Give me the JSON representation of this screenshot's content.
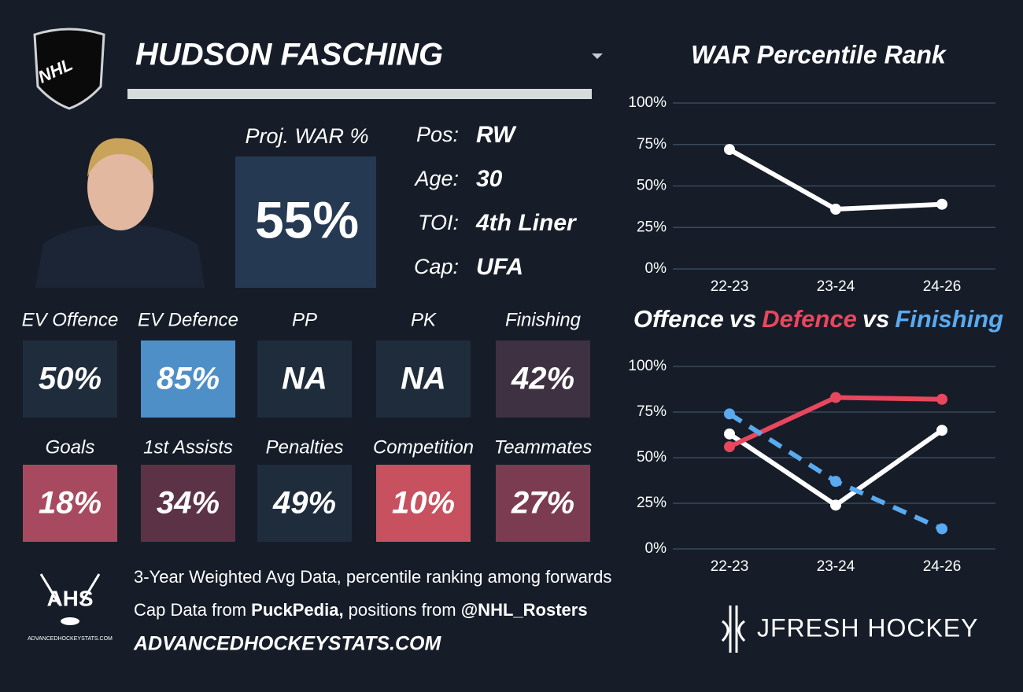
{
  "header": {
    "logo": "NHL",
    "player": "HUDSON FASCHING"
  },
  "proj": {
    "label": "Proj. WAR %",
    "value": "55%"
  },
  "bio": [
    {
      "label": "Pos:",
      "value": "RW"
    },
    {
      "label": "Age:",
      "value": "30"
    },
    {
      "label": "TOI:",
      "value": "4th Liner"
    },
    {
      "label": "Cap:",
      "value": "UFA"
    }
  ],
  "tiles": [
    {
      "label": "EV Offence",
      "value": "50%",
      "color": "#1f2c3c"
    },
    {
      "label": "EV Defence",
      "value": "85%",
      "color": "#4f8fc8"
    },
    {
      "label": "PP",
      "value": "NA",
      "color": "#1f2c3c"
    },
    {
      "label": "PK",
      "value": "NA",
      "color": "#1f2c3c"
    },
    {
      "label": "Finishing",
      "value": "42%",
      "color": "#3e3142"
    },
    {
      "label": "Goals",
      "value": "18%",
      "color": "#a84a5f"
    },
    {
      "label": "1st Assists",
      "value": "34%",
      "color": "#5c3346"
    },
    {
      "label": "Penalties",
      "value": "49%",
      "color": "#1f2c3c"
    },
    {
      "label": "Competition",
      "value": "10%",
      "color": "#c8515f"
    },
    {
      "label": "Teammates",
      "value": "27%",
      "color": "#7b3b51"
    }
  ],
  "footer": {
    "ahs_logo": "AHS",
    "ahs_site": "ADVANCEDHOCKEYSTATS.COM",
    "line1": "3-Year Weighted Avg Data, percentile ranking among forwards",
    "line2": [
      "Cap Data from ",
      "PuckPedia,",
      " positions from ",
      "@NHL_Rosters"
    ],
    "website": "ADVANCEDHOCKEYSTATS.COM",
    "brand": "JFRESH HOCKEY"
  },
  "chart_data": [
    {
      "type": "line",
      "title": "WAR Percentile Rank",
      "categories": [
        "22-23",
        "23-24",
        "24-26"
      ],
      "values": [
        72,
        36,
        39
      ],
      "color": "#ffffff",
      "ylim": [
        0,
        100
      ],
      "yticks": [
        {
          "value": 0,
          "label": "0%"
        },
        {
          "value": 25,
          "label": "25%"
        },
        {
          "value": 50,
          "label": "50%"
        },
        {
          "value": 75,
          "label": "75%"
        },
        {
          "value": 100,
          "label": "100%"
        }
      ],
      "grid": true
    },
    {
      "type": "line",
      "title_separator": "vs",
      "categories": [
        "22-23",
        "23-24",
        "24-26"
      ],
      "series": [
        {
          "name": "Offence",
          "color": "#ffffff",
          "values": [
            63,
            24,
            65
          ]
        },
        {
          "name": "Defence",
          "color": "#e8475d",
          "values": [
            56,
            83,
            82
          ]
        },
        {
          "name": "Finishing",
          "color": "#5aaaf0",
          "values": [
            74,
            37,
            11
          ],
          "dashed": true
        }
      ],
      "ylim": [
        0,
        100
      ],
      "yticks": [
        {
          "value": 0,
          "label": "0%"
        },
        {
          "value": 25,
          "label": "25%"
        },
        {
          "value": 50,
          "label": "50%"
        },
        {
          "value": 75,
          "label": "75%"
        },
        {
          "value": 100,
          "label": "100%"
        }
      ],
      "grid": true
    }
  ]
}
